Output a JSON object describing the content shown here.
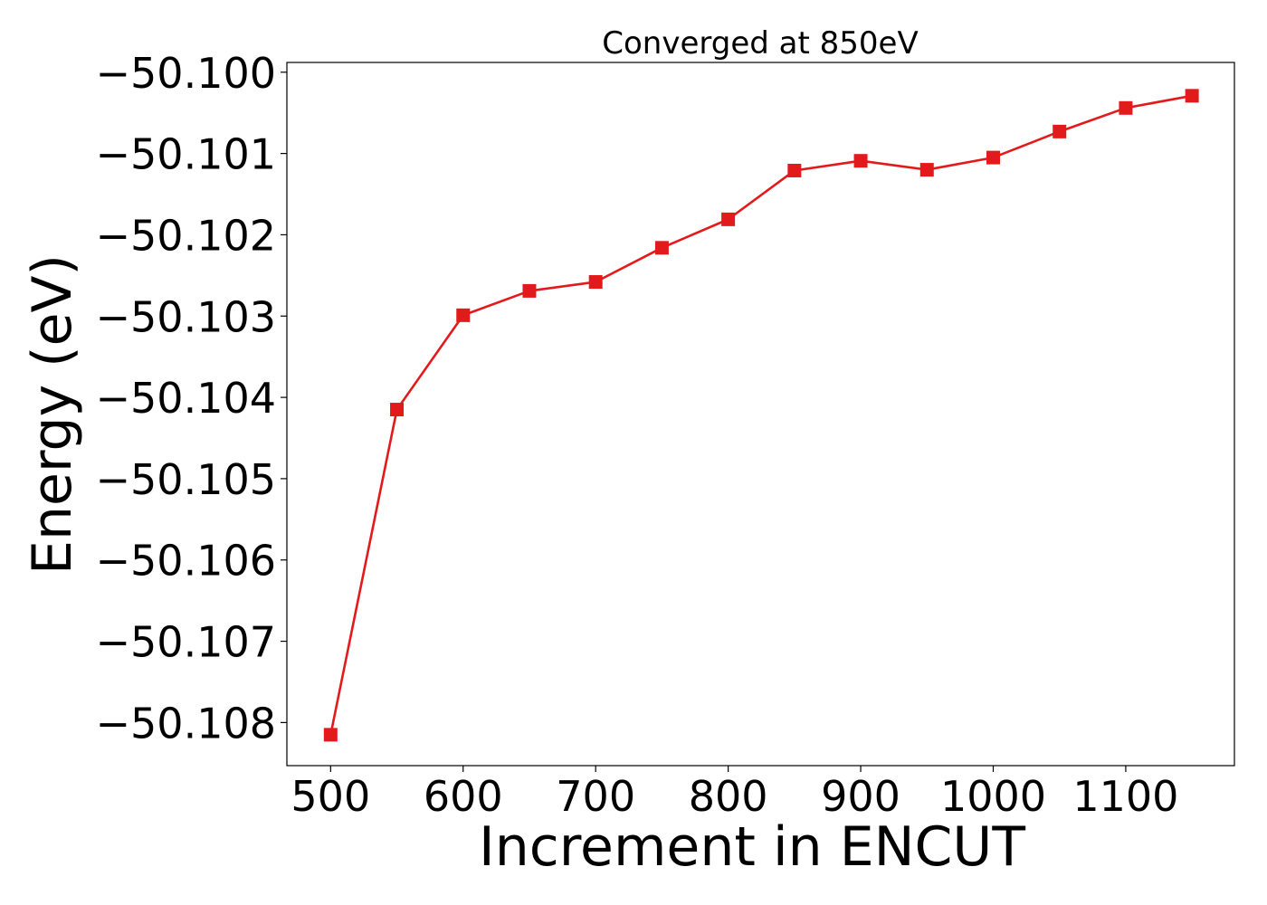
{
  "chart_data": {
    "type": "line",
    "title": "Converged at 850eV",
    "xlabel": "Increment in ENCUT",
    "ylabel": "Energy (eV)",
    "xlim": [
      467,
      1182
    ],
    "ylim": [
      -50.10853,
      -50.09988
    ],
    "xticks": [
      500,
      600,
      700,
      800,
      900,
      1000,
      1100
    ],
    "xtick_labels": [
      "500",
      "600",
      "700",
      "800",
      "900",
      "1000",
      "1100"
    ],
    "yticks": [
      -50.1,
      -50.101,
      -50.102,
      -50.103,
      -50.104,
      -50.105,
      -50.106,
      -50.107,
      -50.108
    ],
    "ytick_labels": [
      "−50.100",
      "−50.101",
      "−50.102",
      "−50.103",
      "−50.104",
      "−50.105",
      "−50.106",
      "−50.107",
      "−50.108"
    ],
    "grid": false,
    "series": [
      {
        "color": "#e31a1c",
        "marker": "square",
        "x": [
          500,
          550,
          600,
          650,
          700,
          750,
          800,
          850,
          900,
          950,
          1000,
          1050,
          1100,
          1150
        ],
        "y": [
          -50.10815,
          -50.10415,
          -50.10299,
          -50.10269,
          -50.10258,
          -50.10216,
          -50.10181,
          -50.10121,
          -50.10109,
          -50.1012,
          -50.10105,
          -50.10073,
          -50.10044,
          -50.10029
        ]
      }
    ]
  }
}
